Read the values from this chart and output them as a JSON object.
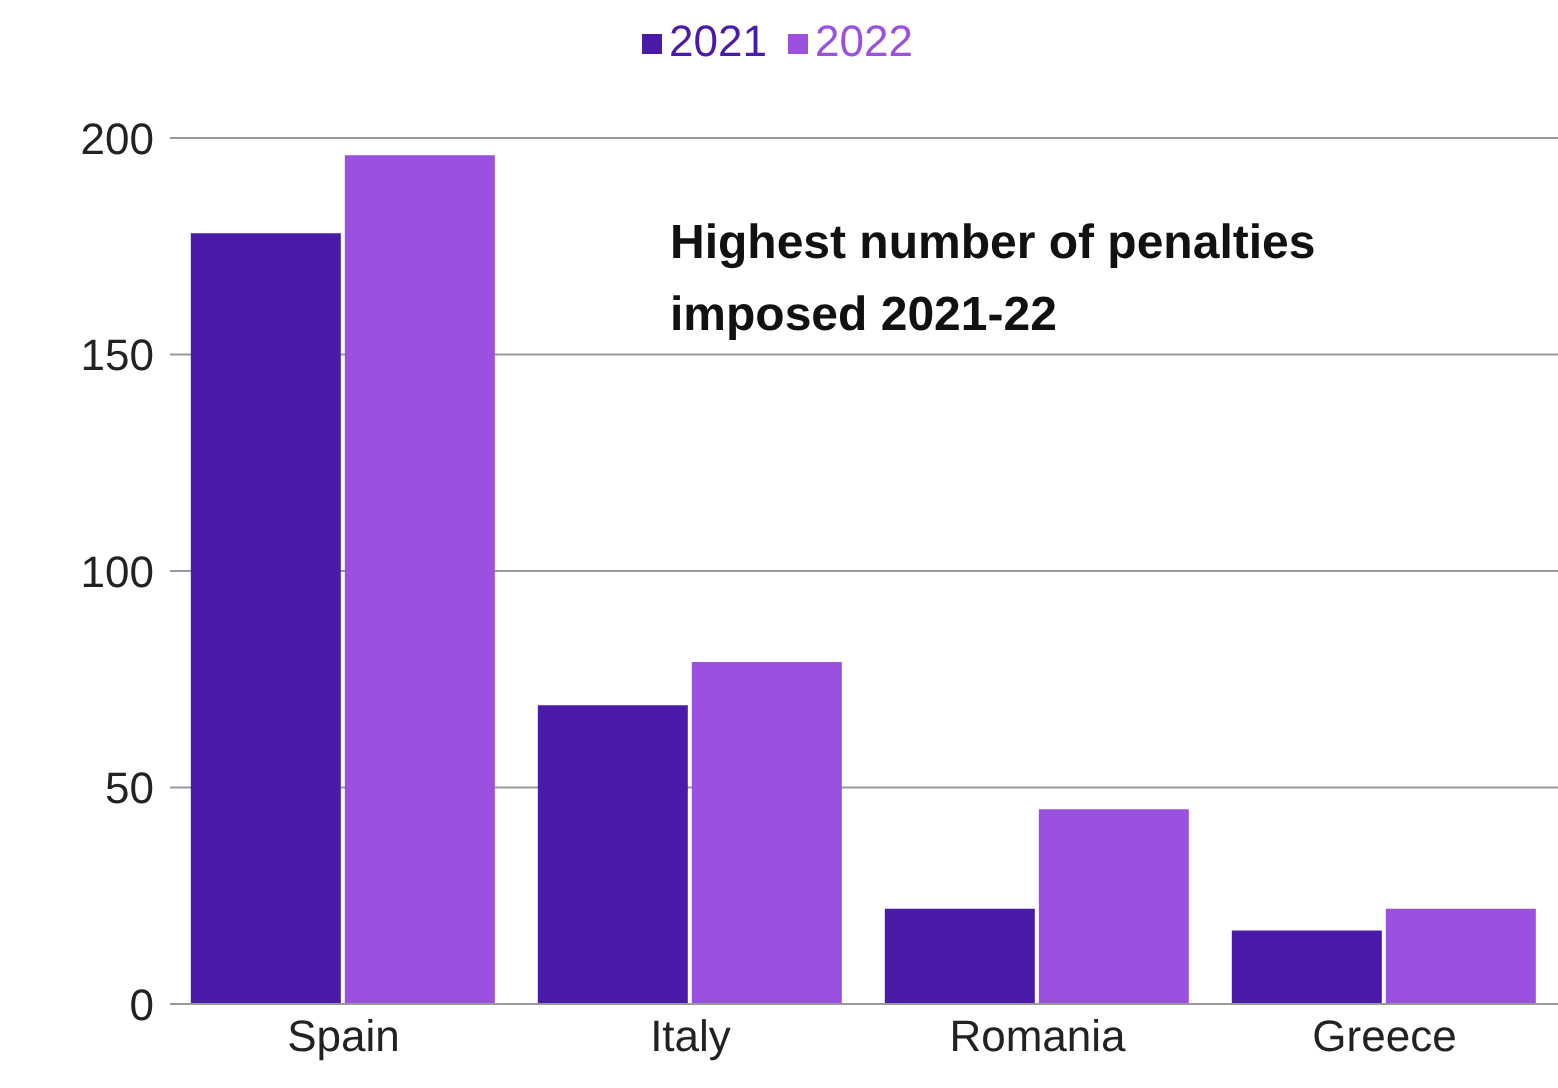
{
  "chart_data": {
    "type": "bar",
    "categories": [
      "Spain",
      "Italy",
      "Romania",
      "Greece"
    ],
    "series": [
      {
        "name": "2021",
        "color": "#4a1aa8",
        "values": [
          178,
          69,
          22,
          17
        ]
      },
      {
        "name": "2022",
        "color": "#9b51e0",
        "values": [
          196,
          79,
          45,
          22
        ]
      }
    ],
    "ylim": [
      0,
      200
    ],
    "yticks": [
      0,
      50,
      100,
      150,
      200
    ],
    "grid": "y",
    "legend": "top",
    "annotations": [
      "Highest number of penalties imposed 2021-22"
    ]
  }
}
